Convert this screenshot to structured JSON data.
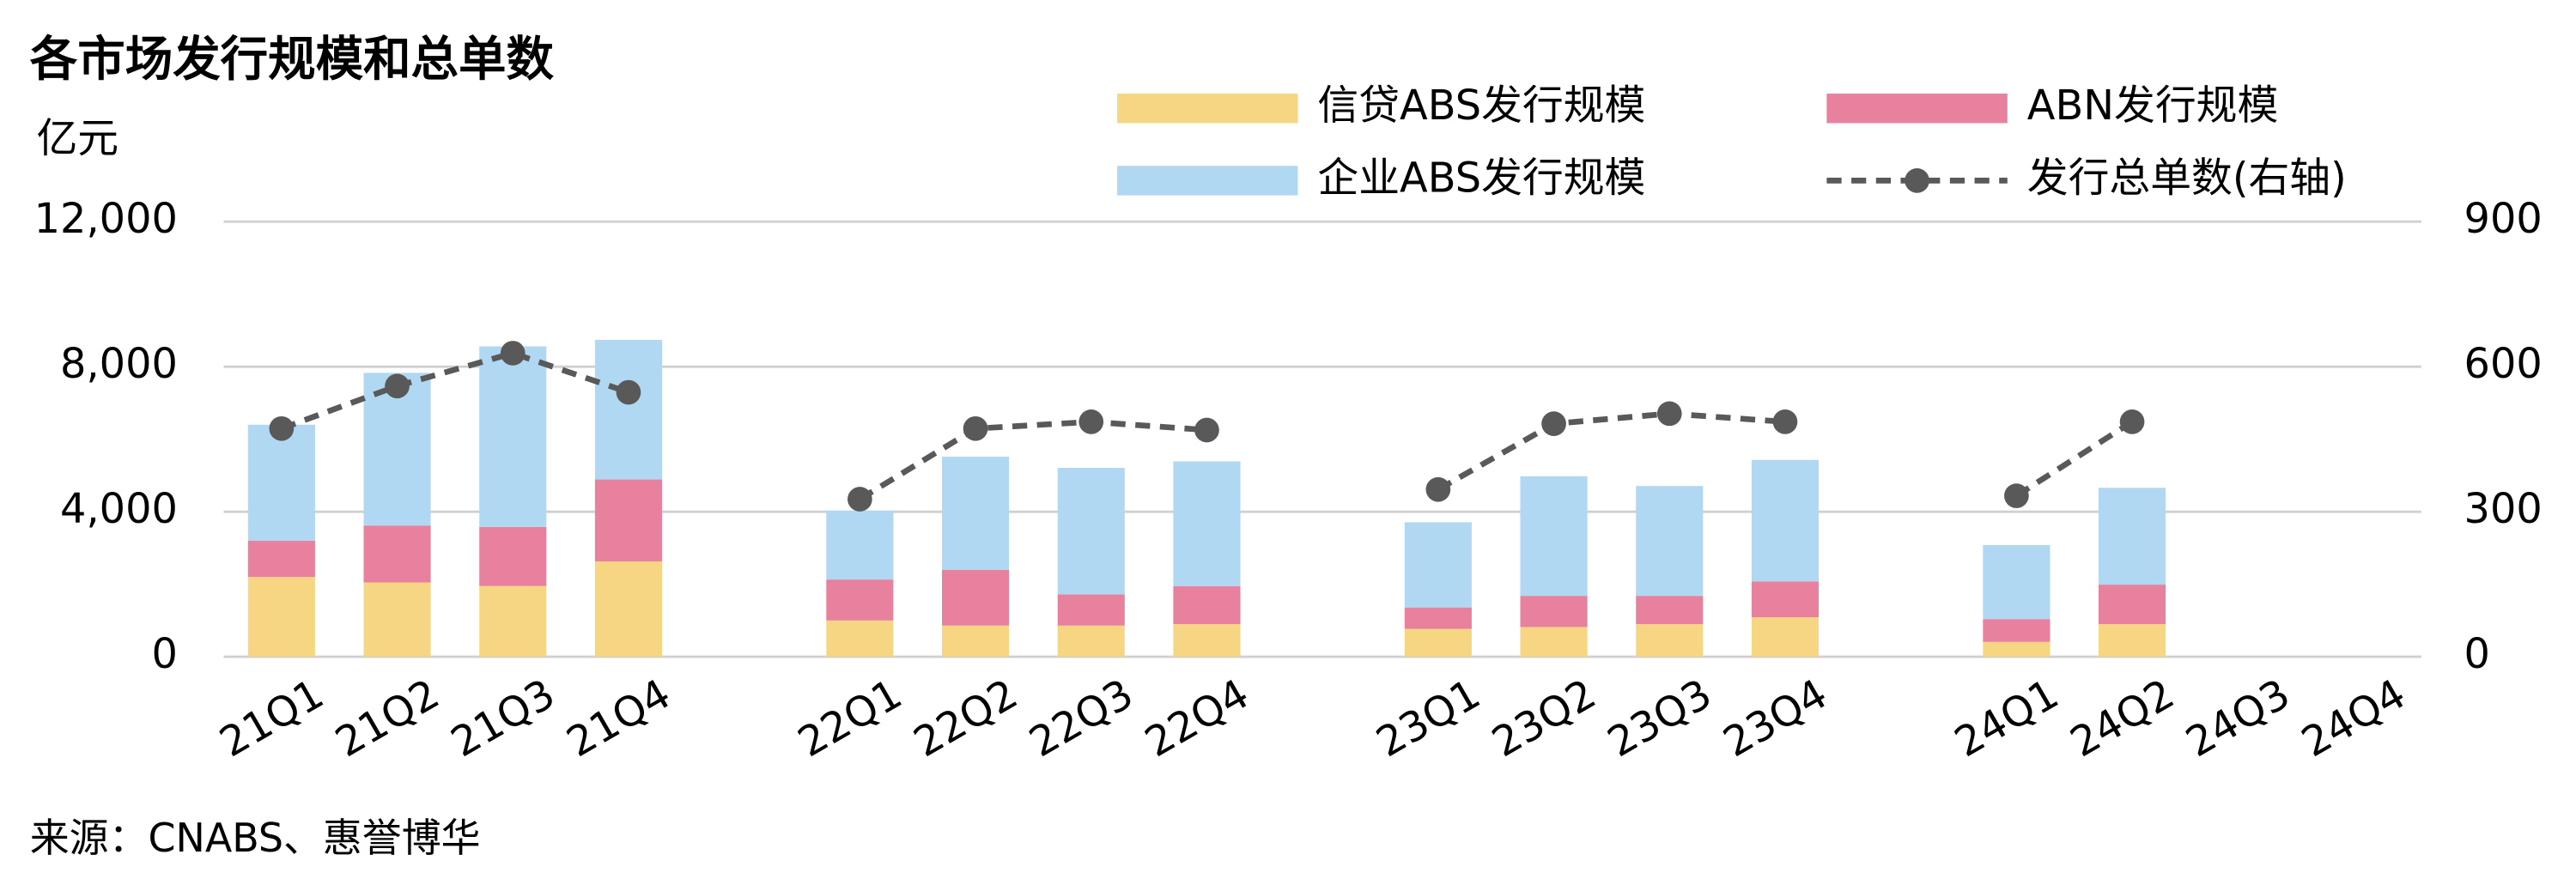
{
  "chart_data": {
    "type": "bar",
    "stacked": true,
    "title": "各市场发行规模和总单数",
    "y_label": "亿元",
    "source": "来源：CNABS、惠誉博华",
    "categories": [
      "21Q1",
      "21Q2",
      "21Q3",
      "21Q4",
      null,
      "22Q1",
      "22Q2",
      "22Q3",
      "22Q4",
      null,
      "23Q1",
      "23Q2",
      "23Q3",
      "23Q4",
      null,
      "24Q1",
      "24Q2",
      "24Q3",
      "24Q4"
    ],
    "series": [
      {
        "name": "信贷ABS发行规模",
        "color": "#F7D683",
        "values": [
          2200,
          2050,
          1950,
          2630,
          null,
          1000,
          860,
          860,
          900,
          null,
          770,
          820,
          900,
          1090,
          null,
          410,
          900,
          null,
          null
        ]
      },
      {
        "name": "ABN发行规模",
        "color": "#E8819E",
        "values": [
          1000,
          1570,
          1630,
          2260,
          null,
          1130,
          1540,
          860,
          1050,
          null,
          590,
          860,
          780,
          990,
          null,
          630,
          1090,
          null,
          null
        ]
      },
      {
        "name": "企业ABS发行规模",
        "color": "#B0D8F2",
        "values": [
          3200,
          4210,
          4980,
          3850,
          null,
          1900,
          3120,
          3490,
          3440,
          null,
          2350,
          3300,
          3030,
          3350,
          null,
          2040,
          2670,
          null,
          null
        ]
      },
      {
        "name": "发行总单数(右轴)",
        "color": "#595959",
        "type": "line",
        "axis": "y2",
        "values": [
          472,
          560,
          628,
          547,
          null,
          326,
          472,
          486,
          469,
          null,
          346,
          482,
          503,
          486,
          null,
          333,
          486,
          null,
          null
        ]
      }
    ],
    "ylim": [
      0,
      12000
    ],
    "yticks": [
      0,
      {
        "value": 4000,
        "label": "4,000"
      },
      {
        "value": 8000,
        "label": "8,000"
      },
      {
        "value": 12000,
        "label": "12,000"
      }
    ],
    "y2lim": [
      0,
      900
    ],
    "y2ticks": [
      0,
      300,
      600,
      900
    ],
    "grid": true,
    "legend": "top-right"
  }
}
